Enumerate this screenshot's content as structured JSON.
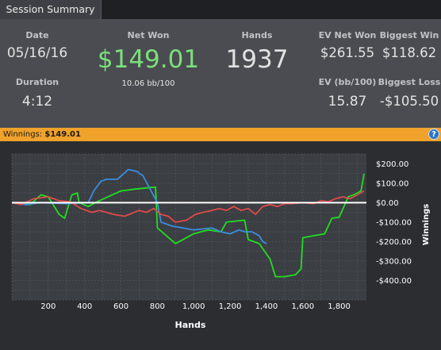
{
  "tab": {
    "label": "Session Summary"
  },
  "summary": {
    "date_label": "Date",
    "date": "05/16/16",
    "duration_label": "Duration",
    "duration": "4:12",
    "net_won_label": "Net Won",
    "net_won": "$149.01",
    "bb_per_100": "10.06 bb/100",
    "hands_label": "Hands",
    "hands": "1937",
    "ev_net_won_label": "EV Net Won",
    "ev_net_won": "$261.55",
    "ev_bb_label": "EV (bb/100)",
    "ev_bb": "15.87",
    "biggest_win_label": "Biggest Win",
    "biggest_win": "$118.62",
    "biggest_loss_label": "Biggest Loss",
    "biggest_loss": "-$105.50"
  },
  "winnings_bar": {
    "label": "Winnings:",
    "value": "$149.01"
  },
  "colors": {
    "accent_bar": "#f0a22a",
    "net_won": "#7be07b",
    "green_series": "#22dd22",
    "blue_series": "#3a8fe0",
    "red_series": "#e04a4a",
    "zero_line": "#ffffff"
  },
  "chart_data": {
    "type": "line",
    "xlabel": "Hands",
    "ylabel": "Winnings",
    "xlim": [
      0,
      1950
    ],
    "ylim": [
      -500,
      250
    ],
    "x_ticks": [
      200,
      400,
      600,
      800,
      1000,
      1200,
      1400,
      1600,
      1800
    ],
    "x_tick_labels": [
      "200",
      "400",
      "600",
      "800",
      "1,000",
      "1,200",
      "1,400",
      "1,600",
      "1,800"
    ],
    "y_ticks": [
      200,
      100,
      0,
      -100,
      -200,
      -300,
      -400
    ],
    "y_tick_labels": [
      "$200.00",
      "$100.00",
      "$0.00",
      "-$100.00",
      "-$200.00",
      "-$300.00",
      "-$400.00"
    ],
    "grid": true,
    "series": [
      {
        "color": "#22dd22",
        "x": [
          0,
          100,
          160,
          200,
          260,
          290,
          330,
          360,
          370,
          420,
          470,
          600,
          680,
          790,
          800,
          900,
          1000,
          1080,
          1150,
          1180,
          1280,
          1300,
          1360,
          1420,
          1450,
          1500,
          1560,
          1590,
          1600,
          1660,
          1720,
          1760,
          1800,
          1850,
          1880,
          1920,
          1937
        ],
        "y": [
          0,
          -10,
          40,
          30,
          -60,
          -80,
          40,
          50,
          0,
          -20,
          5,
          60,
          70,
          80,
          -130,
          -210,
          -160,
          -140,
          -150,
          -100,
          -90,
          -190,
          -210,
          -290,
          -380,
          -380,
          -370,
          -340,
          -180,
          -170,
          -160,
          -80,
          -75,
          30,
          40,
          60,
          149
        ]
      },
      {
        "color": "#3a8fe0",
        "x": [
          0,
          80,
          150,
          300,
          420,
          450,
          490,
          520,
          580,
          640,
          690,
          700,
          720,
          800,
          820,
          880,
          1000,
          1100,
          1150,
          1200,
          1250,
          1280,
          1320,
          1360,
          1380,
          1400
        ],
        "y": [
          0,
          -10,
          0,
          -5,
          0,
          60,
          110,
          120,
          120,
          170,
          160,
          150,
          140,
          0,
          -100,
          -120,
          -140,
          -130,
          -150,
          -160,
          -140,
          -150,
          -150,
          -170,
          -200,
          -210
        ]
      },
      {
        "color": "#e04a4a",
        "x": [
          0,
          50,
          120,
          200,
          260,
          320,
          380,
          440,
          480,
          520,
          560,
          620,
          700,
          740,
          780,
          820,
          860,
          900,
          960,
          1010,
          1050,
          1100,
          1140,
          1180,
          1220,
          1260,
          1300,
          1340,
          1380,
          1420,
          1460,
          1500,
          1540,
          1600,
          1660,
          1700,
          1740,
          1780,
          1820,
          1860,
          1900,
          1937
        ],
        "y": [
          0,
          -10,
          20,
          30,
          10,
          5,
          -30,
          -50,
          -40,
          -50,
          -60,
          -70,
          -40,
          -50,
          -30,
          -60,
          -70,
          -100,
          -90,
          -60,
          -50,
          -40,
          -30,
          -40,
          -20,
          -40,
          -30,
          -60,
          -20,
          -10,
          -20,
          -5,
          -5,
          0,
          -5,
          10,
          5,
          20,
          30,
          20,
          40,
          60
        ]
      }
    ]
  }
}
